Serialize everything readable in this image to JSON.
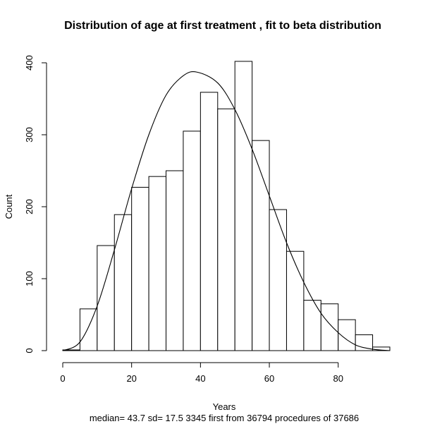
{
  "chart_data": {
    "type": "bar",
    "title": "Distribution of  age at first treatment , fit to beta distribution",
    "xlabel": "Years",
    "ylabel": "Count",
    "subtitle": "median= 43.7 sd= 17.5    3345 first from 36794 procedures of  37686",
    "xlim": [
      0,
      95
    ],
    "ylim": [
      0,
      400
    ],
    "x_ticks": [
      "0",
      "20",
      "40",
      "60",
      "80"
    ],
    "y_ticks": [
      "0",
      "100",
      "200",
      "300",
      "400"
    ],
    "bins": [
      {
        "from": 0,
        "to": 5,
        "count": 1
      },
      {
        "from": 5,
        "to": 10,
        "count": 58
      },
      {
        "from": 10,
        "to": 15,
        "count": 146
      },
      {
        "from": 15,
        "to": 20,
        "count": 189
      },
      {
        "from": 20,
        "to": 25,
        "count": 227
      },
      {
        "from": 25,
        "to": 30,
        "count": 242
      },
      {
        "from": 30,
        "to": 35,
        "count": 250
      },
      {
        "from": 35,
        "to": 40,
        "count": 305
      },
      {
        "from": 40,
        "to": 45,
        "count": 359
      },
      {
        "from": 45,
        "to": 50,
        "count": 336
      },
      {
        "from": 50,
        "to": 55,
        "count": 402
      },
      {
        "from": 55,
        "to": 60,
        "count": 292
      },
      {
        "from": 60,
        "to": 65,
        "count": 196
      },
      {
        "from": 65,
        "to": 70,
        "count": 138
      },
      {
        "from": 70,
        "to": 75,
        "count": 70
      },
      {
        "from": 75,
        "to": 80,
        "count": 65
      },
      {
        "from": 80,
        "to": 85,
        "count": 43
      },
      {
        "from": 85,
        "to": 90,
        "count": 22
      },
      {
        "from": 90,
        "to": 95,
        "count": 5
      }
    ],
    "fit_curve": {
      "type": "beta",
      "points": [
        [
          0,
          0
        ],
        [
          5,
          12
        ],
        [
          10,
          62
        ],
        [
          15,
          140
        ],
        [
          20,
          225
        ],
        [
          25,
          300
        ],
        [
          30,
          355
        ],
        [
          35,
          382
        ],
        [
          39,
          387
        ],
        [
          45,
          372
        ],
        [
          50,
          335
        ],
        [
          55,
          280
        ],
        [
          60,
          215
        ],
        [
          65,
          150
        ],
        [
          70,
          95
        ],
        [
          75,
          52
        ],
        [
          80,
          25
        ],
        [
          85,
          8
        ],
        [
          90,
          2
        ],
        [
          95,
          0
        ]
      ]
    },
    "grid": false,
    "legend": "none",
    "bar_fill": "#ffffff",
    "bar_stroke": "#000000"
  }
}
